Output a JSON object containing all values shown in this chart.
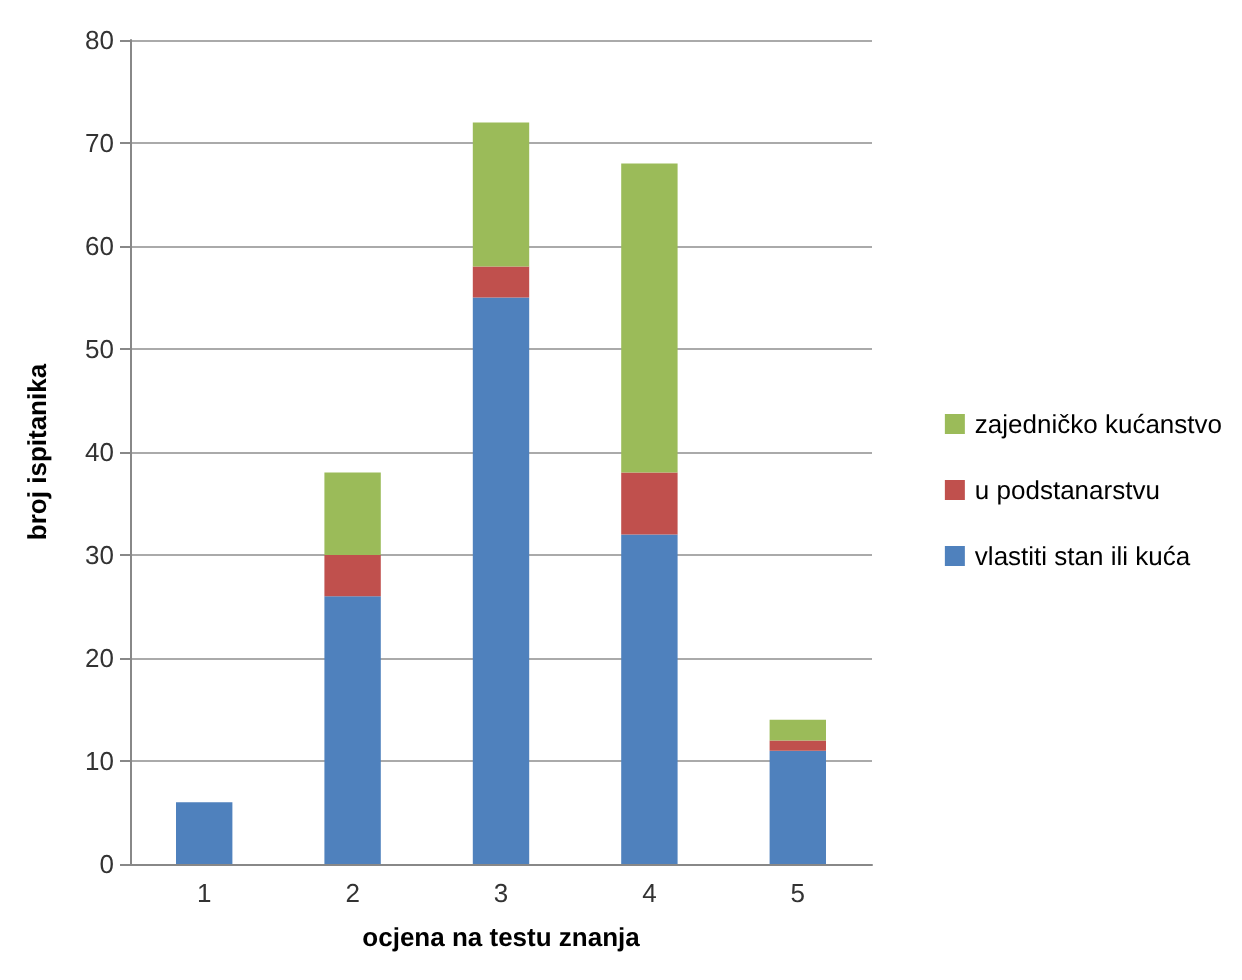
{
  "chart_data": {
    "type": "bar",
    "stacked": true,
    "xlabel": "ocjena na testu znanja",
    "ylabel": "broj ispitanika",
    "categories": [
      "1",
      "2",
      "3",
      "4",
      "5"
    ],
    "series": [
      {
        "name": "vlastiti stan ili kuća",
        "color": "#4f81bd",
        "values": [
          6,
          26,
          55,
          32,
          11
        ]
      },
      {
        "name": "u podstanarstvu",
        "color": "#c0504d",
        "values": [
          0,
          4,
          3,
          6,
          1
        ]
      },
      {
        "name": "zajedničko kućanstvo",
        "color": "#9bbb59",
        "values": [
          0,
          8,
          14,
          30,
          2
        ]
      }
    ],
    "ylim": [
      0,
      80
    ],
    "yticks": [
      0,
      10,
      20,
      30,
      40,
      50,
      60,
      70,
      80
    ],
    "grid": "y",
    "legend": "right"
  }
}
